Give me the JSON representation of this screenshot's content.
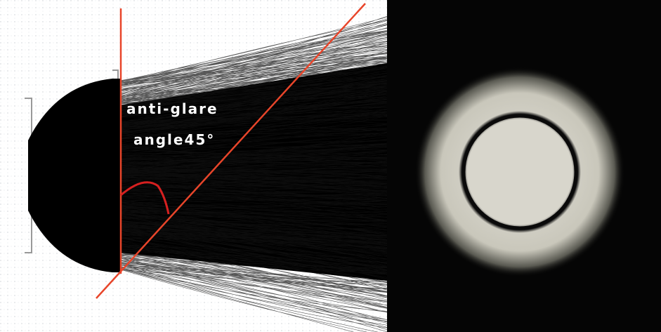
{
  "annotation": {
    "line1": "anti-glare",
    "line2": "angle45°"
  }
}
